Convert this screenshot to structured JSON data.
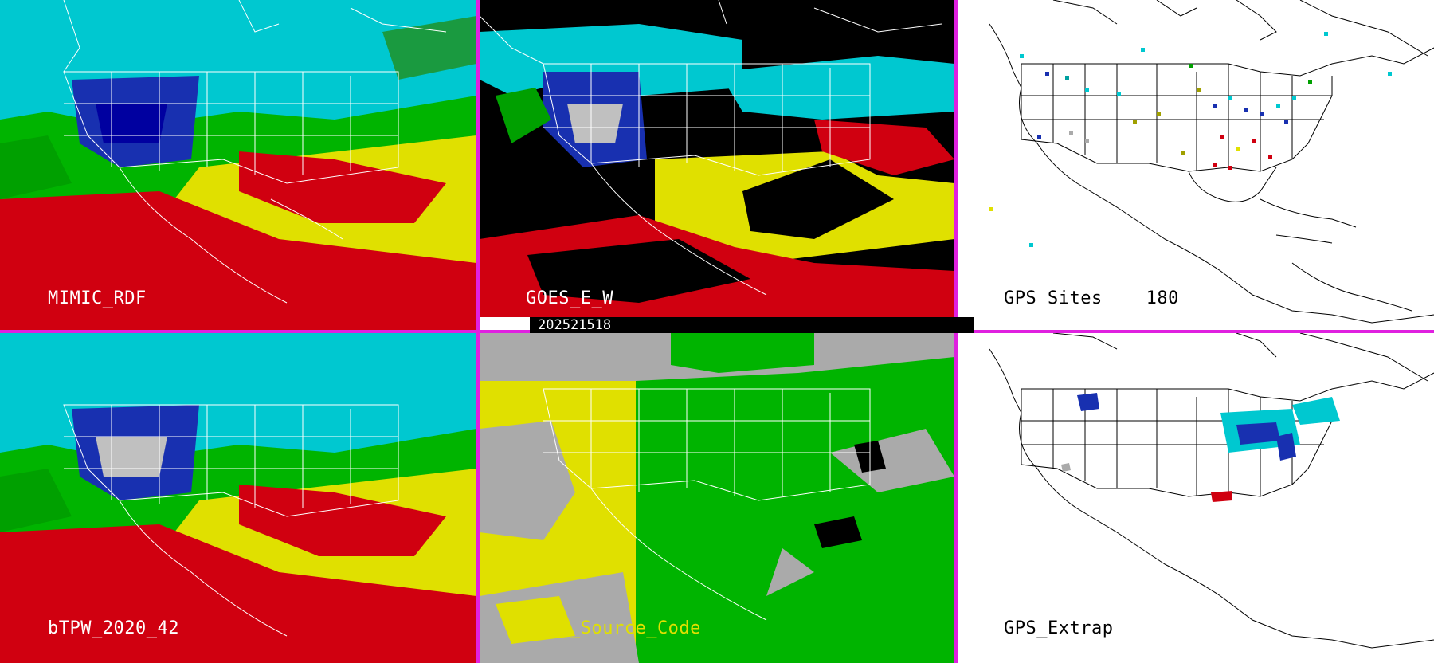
{
  "timestamp": "202521518",
  "panels": [
    {
      "key": "p1",
      "label": "MIMIC_RDF",
      "style": "tpw"
    },
    {
      "key": "p2",
      "label": "GOES_E_W",
      "style": "goes"
    },
    {
      "key": "p3",
      "label": "GPS Sites    180",
      "style": "gps"
    },
    {
      "key": "p4",
      "label": "bTPW_2020_42",
      "style": "tpw"
    },
    {
      "key": "p5",
      "label": "Data_Source_Code",
      "style": "dsc"
    },
    {
      "key": "p6",
      "label": "GPS_Extrap",
      "style": "gpsx"
    }
  ],
  "colors": {
    "divider": "#e020e0",
    "tpw_low": "#00a000",
    "tpw_mid": "#00c8c8",
    "tpw_moist": "#e0e000",
    "tpw_high": "#d00010",
    "dsc_gray": "#aaaaaa",
    "dsc_yellow": "#e0e000",
    "dsc_green": "#00b400"
  }
}
